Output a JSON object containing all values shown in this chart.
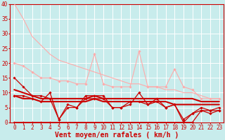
{
  "background_color": "#c8ecec",
  "grid_color": "#ffffff",
  "xlabel": "Vent moyen/en rafales ( km/h )",
  "xlabel_color": "#cc0000",
  "xlabel_fontsize": 7,
  "tick_color": "#cc0000",
  "tick_fontsize": 5.5,
  "xlim": [
    -0.5,
    23.5
  ],
  "ylim": [
    0,
    40
  ],
  "yticks": [
    0,
    5,
    10,
    15,
    20,
    25,
    30,
    35,
    40
  ],
  "xticks": [
    0,
    1,
    2,
    3,
    4,
    5,
    6,
    7,
    8,
    9,
    10,
    11,
    12,
    13,
    14,
    15,
    16,
    17,
    18,
    19,
    20,
    21,
    22,
    23
  ],
  "lines": [
    {
      "x": [
        0,
        1,
        2,
        3,
        4,
        5,
        6,
        7,
        8,
        9,
        10,
        11,
        12,
        13,
        14,
        15,
        16,
        17,
        18,
        19,
        20,
        21,
        22,
        23
      ],
      "y": [
        40,
        35,
        29,
        26,
        23,
        21,
        20,
        19,
        18,
        17,
        16,
        15,
        14,
        13,
        13,
        12,
        12,
        11,
        11,
        10,
        10,
        9,
        8,
        8
      ],
      "color": "#ffaaaa",
      "lw": 0.8,
      "marker": null
    },
    {
      "x": [
        0,
        1,
        2,
        3,
        4,
        5,
        6,
        7,
        8,
        9,
        10,
        11,
        12,
        13,
        14,
        15,
        16,
        17,
        18,
        19,
        20,
        21,
        22,
        23
      ],
      "y": [
        20,
        19,
        17,
        15,
        15,
        14,
        14,
        13,
        13,
        23,
        13,
        12,
        12,
        12,
        24,
        12,
        12,
        12,
        18,
        12,
        11,
        8,
        8,
        8
      ],
      "color": "#ffaaaa",
      "lw": 0.8,
      "marker": "D",
      "ms": 1.8
    },
    {
      "x": [
        0,
        1,
        2,
        3,
        4,
        5,
        6,
        7,
        8,
        9,
        10,
        11,
        12,
        13,
        14,
        15,
        16,
        17,
        18,
        19,
        20,
        21,
        22,
        23
      ],
      "y": [
        15,
        12,
        9,
        9,
        8,
        1,
        6,
        5,
        9,
        9,
        9,
        5,
        5,
        7,
        7,
        6,
        8,
        5,
        6,
        1,
        3,
        5,
        4,
        5
      ],
      "color": "#cc0000",
      "lw": 0.9,
      "marker": "D",
      "ms": 1.8
    },
    {
      "x": [
        0,
        1,
        2,
        3,
        4,
        5,
        6,
        7,
        8,
        9,
        10,
        11,
        12,
        13,
        14,
        15,
        16,
        17,
        18,
        19,
        20,
        21,
        22,
        23
      ],
      "y": [
        11,
        10,
        9,
        8,
        8,
        8,
        8,
        8,
        8,
        9,
        8,
        8,
        8,
        8,
        8,
        8,
        8,
        8,
        8,
        8,
        8,
        7,
        7,
        7
      ],
      "color": "#cc0000",
      "lw": 1.5,
      "marker": null
    },
    {
      "x": [
        0,
        1,
        2,
        3,
        4,
        5,
        6,
        7,
        8,
        9,
        10,
        11,
        12,
        13,
        14,
        15,
        16,
        17,
        18,
        19,
        20,
        21,
        22,
        23
      ],
      "y": [
        9,
        9,
        8,
        7,
        10,
        1,
        5,
        5,
        8,
        8,
        8,
        5,
        5,
        6,
        10,
        6,
        7,
        5,
        6,
        0,
        3,
        4,
        3,
        4
      ],
      "color": "#cc0000",
      "lw": 0.9,
      "marker": "D",
      "ms": 1.8
    },
    {
      "x": [
        0,
        1,
        2,
        3,
        4,
        5,
        6,
        7,
        8,
        9,
        10,
        11,
        12,
        13,
        14,
        15,
        16,
        17,
        18,
        19,
        20,
        21,
        22,
        23
      ],
      "y": [
        9,
        8,
        8,
        7,
        7,
        7,
        7,
        7,
        7,
        8,
        7,
        7,
        7,
        7,
        7,
        7,
        7,
        7,
        6,
        6,
        6,
        6,
        6,
        6
      ],
      "color": "#cc0000",
      "lw": 1.5,
      "marker": null
    },
    {
      "x": [
        0,
        1,
        2,
        3,
        4,
        5,
        19,
        20,
        21,
        22,
        23
      ],
      "y": [
        0,
        0,
        0,
        0,
        0,
        0,
        0,
        0,
        4,
        4,
        4
      ],
      "color": "#cc0000",
      "lw": 0.9,
      "marker": "D",
      "ms": 1.8
    }
  ]
}
